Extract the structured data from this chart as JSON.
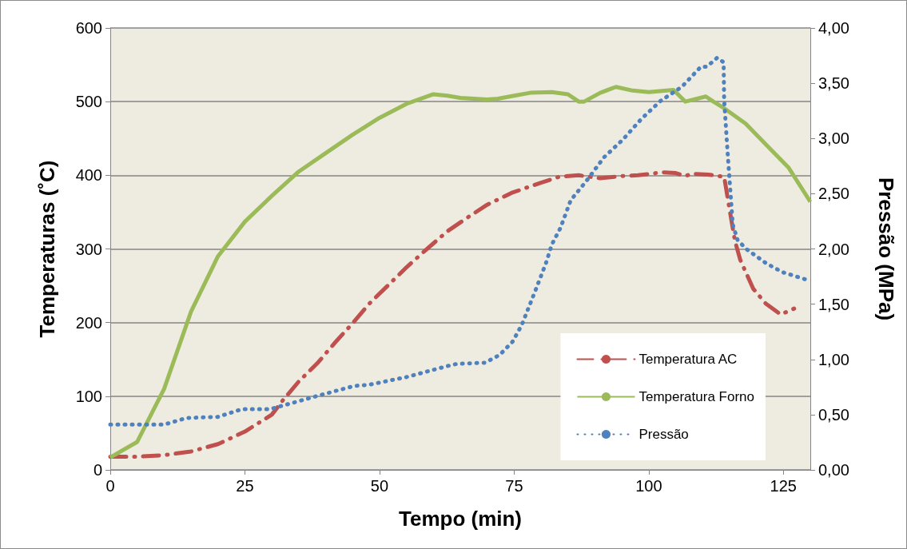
{
  "chart_data": {
    "type": "line",
    "xlabel": "Tempo (min)",
    "ylabel": "Temperaturas (˚C)",
    "y2label": "Pressão (MPa)",
    "xlim": [
      0,
      130
    ],
    "xticks": [
      0,
      25,
      50,
      75,
      100,
      125
    ],
    "ylim": [
      0,
      600
    ],
    "yticks": [
      0,
      100,
      200,
      300,
      400,
      500,
      600
    ],
    "y2lim": [
      0,
      4
    ],
    "y2ticks": [
      {
        "value": 0,
        "label": "0,00"
      },
      {
        "value": 0.5,
        "label": "0,50"
      },
      {
        "value": 1,
        "label": "1,00"
      },
      {
        "value": 1.5,
        "label": "1,50"
      },
      {
        "value": 2,
        "label": "2,00"
      },
      {
        "value": 2.5,
        "label": "2,50"
      },
      {
        "value": 3,
        "label": "3,00"
      },
      {
        "value": 3.5,
        "label": "3,50"
      },
      {
        "value": 4,
        "label": "4,00"
      }
    ],
    "grid": "y",
    "legend": "bottom right",
    "marker": "none",
    "series": [
      {
        "name": "Temperatura AC",
        "color": "#c0504d",
        "line_style": "dashed",
        "x": [
          0,
          5,
          10,
          15,
          20,
          25,
          30,
          32,
          35,
          38.6,
          42,
          45,
          48,
          51.5,
          55,
          58.5,
          62.6,
          66,
          70,
          74.5,
          80,
          83.4,
          87,
          91,
          95,
          98,
          102.5,
          105,
          106.8,
          108,
          111,
          114,
          115,
          116,
          117,
          119.4,
          121.7,
          124.5,
          127
        ],
        "values": [
          18,
          18,
          20,
          25,
          35,
          52,
          75,
          94,
          120,
          146,
          175,
          199,
          225,
          250,
          275,
          298,
          324,
          341,
          360,
          376,
          390,
          398,
          400,
          396,
          399,
          400,
          404,
          403,
          399,
          402,
          401,
          398,
          354,
          311,
          285,
          246,
          226,
          211,
          219
        ]
      },
      {
        "name": "Temperatura Forno",
        "color": "#9bbb59",
        "line_style": "solid",
        "x": [
          0,
          5,
          10,
          15,
          20,
          25,
          30,
          35,
          40,
          45,
          50,
          55,
          60,
          62.6,
          65,
          70,
          72,
          75,
          78,
          82,
          85,
          87,
          88,
          91,
          93.9,
          97,
          100,
          104.6,
          106.8,
          110.6,
          112,
          114,
          118,
          122,
          126,
          130
        ],
        "values": [
          17,
          38,
          110,
          215,
          290,
          337,
          372,
          405,
          430,
          455,
          478,
          497,
          510,
          508,
          505,
          503,
          504,
          508,
          512,
          513,
          510,
          500,
          500,
          512,
          520,
          515,
          513,
          516,
          500,
          507,
          500,
          491,
          470,
          440,
          410,
          364
        ]
      },
      {
        "name": "Pressão",
        "color": "#4f81bd",
        "line_style": "dotted",
        "axis": "y2",
        "x": [
          0,
          10,
          14.2,
          20,
          24.5,
          29.7,
          38.5,
          45.3,
          48,
          55,
          62.6,
          64.4,
          69.6,
          72.3,
          74.7,
          76.4,
          79,
          80.9,
          82,
          83.6,
          85.5,
          88.5,
          91.7,
          95.2,
          98.7,
          102.2,
          106.2,
          109.7,
          110.8,
          112.7,
          113.9,
          114,
          114.6,
          115.1,
          115.6,
          116.5,
          118.1,
          121.8,
          124.8,
          129.4
        ],
        "values": [
          0.41,
          0.41,
          0.47,
          0.48,
          0.55,
          0.55,
          0.67,
          0.76,
          0.77,
          0.84,
          0.94,
          0.96,
          0.97,
          1.04,
          1.16,
          1.31,
          1.63,
          1.87,
          2.04,
          2.19,
          2.44,
          2.62,
          2.83,
          2.99,
          3.18,
          3.34,
          3.47,
          3.65,
          3.65,
          3.73,
          3.69,
          3.35,
          2.9,
          2.56,
          2.22,
          2.08,
          2.0,
          1.87,
          1.79,
          1.72
        ]
      }
    ]
  }
}
